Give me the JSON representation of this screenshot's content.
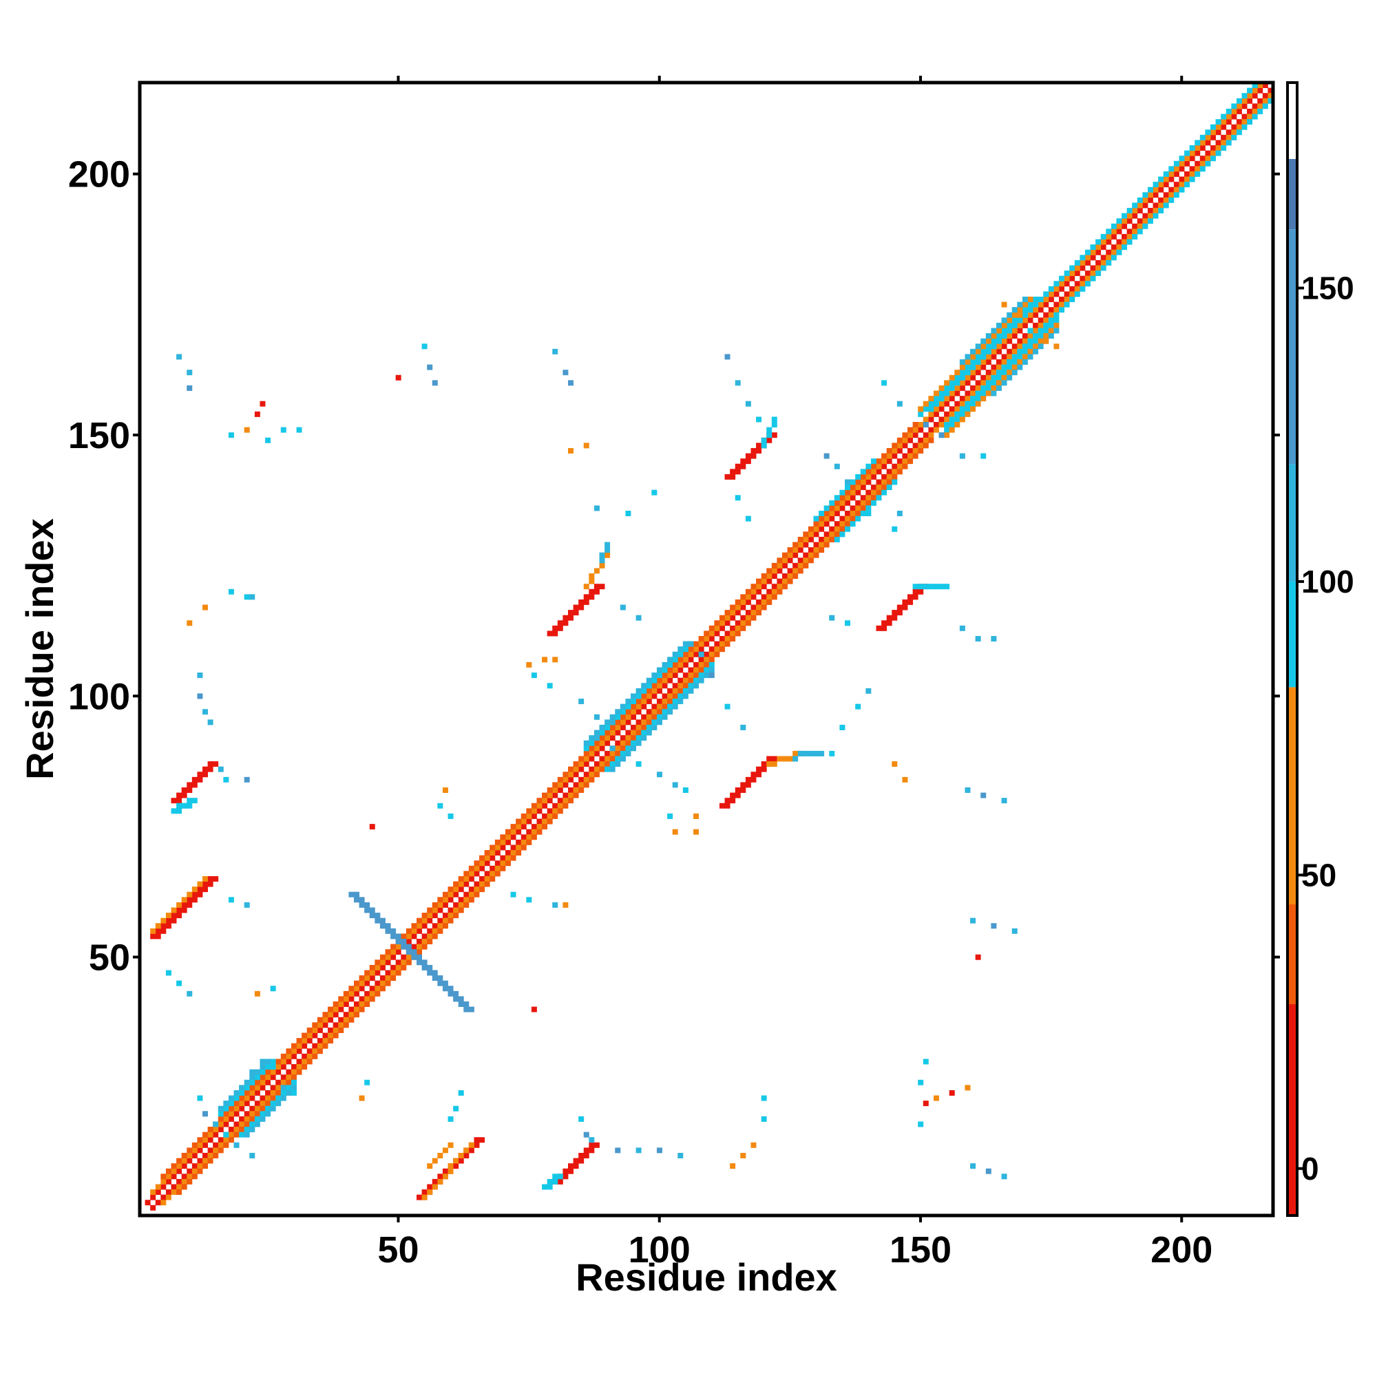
{
  "chart_data": {
    "type": "heatmap",
    "title": "",
    "xlabel": "Residue index",
    "ylabel": "Residue index",
    "xlim": [
      1,
      217
    ],
    "ylim": [
      1,
      217
    ],
    "x_ticks": [
      50,
      100,
      150,
      200
    ],
    "y_ticks": [
      50,
      100,
      150,
      200
    ],
    "symmetric": true,
    "grid": false,
    "colorbar": {
      "position": "right",
      "range": [
        -8,
        185
      ],
      "ticks": [
        0,
        50,
        100,
        150
      ],
      "bands": [
        {
          "from": -8,
          "to": 28,
          "color": "#e8170d"
        },
        {
          "from": 28,
          "to": 45,
          "color": "#f05a0b"
        },
        {
          "from": 45,
          "to": 82,
          "color": "#f38a0f"
        },
        {
          "from": 82,
          "to": 100,
          "color": "#16c8e8"
        },
        {
          "from": 100,
          "to": 120,
          "color": "#2fb4dc"
        },
        {
          "from": 120,
          "to": 160,
          "color": "#4a98cc"
        },
        {
          "from": 160,
          "to": 172,
          "color": "#4b79b0"
        },
        {
          "from": 172,
          "to": 185,
          "color": "#ffffff"
        }
      ]
    },
    "diagonal": [
      {
        "start": 1,
        "end": 217,
        "offset": 0,
        "value": 180
      },
      {
        "start": 2,
        "end": 217,
        "offset": 1,
        "value": 20
      },
      {
        "start": 3,
        "end": 217,
        "offset": 2,
        "value": 60
      },
      {
        "start": 5,
        "end": 152,
        "offset": 3,
        "value": 40
      },
      {
        "start": 152,
        "end": 217,
        "offset": 3,
        "value": 90
      },
      {
        "start": 16,
        "end": 30,
        "offset": 4,
        "value": 90
      },
      {
        "start": 16,
        "end": 30,
        "offset": 5,
        "value": 110
      },
      {
        "start": 86,
        "end": 110,
        "offset": 4,
        "value": 90
      },
      {
        "start": 86,
        "end": 110,
        "offset": 5,
        "value": 110
      },
      {
        "start": 130,
        "end": 145,
        "offset": 4,
        "value": 90
      },
      {
        "start": 150,
        "end": 176,
        "offset": 4,
        "value": 90
      },
      {
        "start": 150,
        "end": 176,
        "offset": 5,
        "value": 60
      },
      {
        "start": 158,
        "end": 176,
        "offset": 6,
        "value": 110
      }
    ],
    "contacts": [
      {
        "x1": 3,
        "y1": 54,
        "x2": 14,
        "y2": 65,
        "w": 2,
        "value": 20
      },
      {
        "x1": 3,
        "y1": 55,
        "x2": 13,
        "y2": 65,
        "w": 1,
        "value": 60
      },
      {
        "x1": 7,
        "y1": 80,
        "x2": 14,
        "y2": 87,
        "w": 2,
        "value": 20
      },
      {
        "x1": 7,
        "y1": 78,
        "x2": 10,
        "y2": 80,
        "w": 2,
        "value": 90
      },
      {
        "x1": 54,
        "y1": 4,
        "x2": 65,
        "y2": 15,
        "w": 2,
        "value": 20
      },
      {
        "x1": 55,
        "y1": 4,
        "x2": 64,
        "y2": 14,
        "w": 1,
        "value": 60
      },
      {
        "x1": 80,
        "y1": 7,
        "x2": 87,
        "y2": 14,
        "w": 2,
        "value": 20
      },
      {
        "x1": 78,
        "y1": 6,
        "x2": 80,
        "y2": 8,
        "w": 2,
        "value": 90
      },
      {
        "x1": 79,
        "y1": 112,
        "x2": 88,
        "y2": 121,
        "w": 2,
        "value": 20
      },
      {
        "x1": 86,
        "y1": 121,
        "x2": 90,
        "y2": 127,
        "w": 1,
        "value": 60
      },
      {
        "x1": 89,
        "y1": 126,
        "x2": 90,
        "y2": 129,
        "w": 1,
        "value": 100
      },
      {
        "x1": 112,
        "y1": 79,
        "x2": 121,
        "y2": 88,
        "w": 2,
        "value": 20
      },
      {
        "x1": 121,
        "y1": 87,
        "x2": 127,
        "y2": 89,
        "w": 1,
        "value": 60
      },
      {
        "x1": 127,
        "y1": 89,
        "x2": 131,
        "y2": 89,
        "w": 1,
        "value": 100
      },
      {
        "x1": 113,
        "y1": 142,
        "x2": 121,
        "y2": 150,
        "w": 2,
        "value": 20
      },
      {
        "x1": 120,
        "y1": 148,
        "x2": 122,
        "y2": 153,
        "w": 1,
        "value": 90
      },
      {
        "x1": 142,
        "y1": 113,
        "x2": 150,
        "y2": 121,
        "w": 2,
        "value": 20
      },
      {
        "x1": 149,
        "y1": 121,
        "x2": 155,
        "y2": 121,
        "w": 1,
        "value": 90
      },
      {
        "x1": 41,
        "y1": 62,
        "x2": 63,
        "y2": 40,
        "w": 2,
        "value": 130
      },
      {
        "x1": 56,
        "y1": 10,
        "x2": 60,
        "y2": 14,
        "w": 1,
        "value": 60
      }
    ],
    "points": [
      {
        "x": 8,
        "y": 165,
        "value": 110
      },
      {
        "x": 10,
        "y": 162,
        "value": 100
      },
      {
        "x": 10,
        "y": 159,
        "value": 130
      },
      {
        "x": 18,
        "y": 150,
        "value": 90
      },
      {
        "x": 21,
        "y": 151,
        "value": 60
      },
      {
        "x": 23,
        "y": 154,
        "value": 20
      },
      {
        "x": 24,
        "y": 156,
        "value": 20
      },
      {
        "x": 25,
        "y": 149,
        "value": 90
      },
      {
        "x": 28,
        "y": 151,
        "value": 90
      },
      {
        "x": 31,
        "y": 151,
        "value": 90
      },
      {
        "x": 10,
        "y": 114,
        "value": 60
      },
      {
        "x": 13,
        "y": 117,
        "value": 60
      },
      {
        "x": 18,
        "y": 120,
        "value": 90
      },
      {
        "x": 21,
        "y": 119,
        "value": 90
      },
      {
        "x": 22,
        "y": 119,
        "value": 100
      },
      {
        "x": 12,
        "y": 104,
        "value": 100
      },
      {
        "x": 12,
        "y": 100,
        "value": 120
      },
      {
        "x": 13,
        "y": 97,
        "value": 110
      },
      {
        "x": 14,
        "y": 95,
        "value": 110
      },
      {
        "x": 16,
        "y": 86,
        "value": 110
      },
      {
        "x": 17,
        "y": 84,
        "value": 90
      },
      {
        "x": 21,
        "y": 84,
        "value": 130
      },
      {
        "x": 18,
        "y": 61,
        "value": 90
      },
      {
        "x": 21,
        "y": 60,
        "value": 100
      },
      {
        "x": 6,
        "y": 47,
        "value": 90
      },
      {
        "x": 8,
        "y": 45,
        "value": 90
      },
      {
        "x": 10,
        "y": 43,
        "value": 100
      },
      {
        "x": 23,
        "y": 43,
        "value": 60
      },
      {
        "x": 26,
        "y": 44,
        "value": 90
      },
      {
        "x": 44,
        "y": 26,
        "value": 90
      },
      {
        "x": 43,
        "y": 23,
        "value": 60
      },
      {
        "x": 45,
        "y": 75,
        "value": 20
      },
      {
        "x": 50,
        "y": 161,
        "value": 20
      },
      {
        "x": 55,
        "y": 167,
        "value": 90
      },
      {
        "x": 56,
        "y": 163,
        "value": 130
      },
      {
        "x": 57,
        "y": 160,
        "value": 120
      },
      {
        "x": 59,
        "y": 82,
        "value": 60
      },
      {
        "x": 58,
        "y": 79,
        "value": 90
      },
      {
        "x": 60,
        "y": 77,
        "value": 90
      },
      {
        "x": 60,
        "y": 19,
        "value": 90
      },
      {
        "x": 62,
        "y": 24,
        "value": 90
      },
      {
        "x": 61,
        "y": 21,
        "value": 90
      },
      {
        "x": 72,
        "y": 62,
        "value": 90
      },
      {
        "x": 75,
        "y": 61,
        "value": 90
      },
      {
        "x": 80,
        "y": 60,
        "value": 100
      },
      {
        "x": 82,
        "y": 60,
        "value": 60
      },
      {
        "x": 76,
        "y": 40,
        "value": 20
      },
      {
        "x": 75,
        "y": 106,
        "value": 60
      },
      {
        "x": 78,
        "y": 107,
        "value": 60
      },
      {
        "x": 80,
        "y": 107,
        "value": 60
      },
      {
        "x": 76,
        "y": 104,
        "value": 90
      },
      {
        "x": 79,
        "y": 102,
        "value": 90
      },
      {
        "x": 80,
        "y": 166,
        "value": 110
      },
      {
        "x": 82,
        "y": 162,
        "value": 120
      },
      {
        "x": 83,
        "y": 160,
        "value": 130
      },
      {
        "x": 83,
        "y": 147,
        "value": 60
      },
      {
        "x": 86,
        "y": 148,
        "value": 60
      },
      {
        "x": 88,
        "y": 136,
        "value": 100
      },
      {
        "x": 94,
        "y": 135,
        "value": 90
      },
      {
        "x": 99,
        "y": 139,
        "value": 90
      },
      {
        "x": 93,
        "y": 117,
        "value": 100
      },
      {
        "x": 96,
        "y": 115,
        "value": 100
      },
      {
        "x": 85,
        "y": 99,
        "value": 100
      },
      {
        "x": 88,
        "y": 96,
        "value": 110
      },
      {
        "x": 91,
        "y": 95,
        "value": 110
      },
      {
        "x": 85,
        "y": 19,
        "value": 90
      },
      {
        "x": 86,
        "y": 16,
        "value": 120
      },
      {
        "x": 87,
        "y": 15,
        "value": 100
      },
      {
        "x": 92,
        "y": 13,
        "value": 120
      },
      {
        "x": 96,
        "y": 13,
        "value": 110
      },
      {
        "x": 100,
        "y": 13,
        "value": 120
      },
      {
        "x": 104,
        "y": 12,
        "value": 110
      },
      {
        "x": 114,
        "y": 10,
        "value": 60
      },
      {
        "x": 116,
        "y": 12,
        "value": 60
      },
      {
        "x": 118,
        "y": 14,
        "value": 60
      },
      {
        "x": 105,
        "y": 82,
        "value": 90
      },
      {
        "x": 102,
        "y": 77,
        "value": 90
      },
      {
        "x": 107,
        "y": 77,
        "value": 60
      },
      {
        "x": 103,
        "y": 74,
        "value": 60
      },
      {
        "x": 107,
        "y": 74,
        "value": 60
      },
      {
        "x": 113,
        "y": 98,
        "value": 90
      },
      {
        "x": 116,
        "y": 94,
        "value": 100
      },
      {
        "x": 126,
        "y": 88,
        "value": 100
      },
      {
        "x": 133,
        "y": 89,
        "value": 90
      },
      {
        "x": 113,
        "y": 165,
        "value": 120
      },
      {
        "x": 115,
        "y": 160,
        "value": 110
      },
      {
        "x": 117,
        "y": 156,
        "value": 100
      },
      {
        "x": 119,
        "y": 153,
        "value": 90
      },
      {
        "x": 115,
        "y": 138,
        "value": 90
      },
      {
        "x": 117,
        "y": 134,
        "value": 90
      },
      {
        "x": 120,
        "y": 23,
        "value": 90
      },
      {
        "x": 120,
        "y": 19,
        "value": 90
      },
      {
        "x": 135,
        "y": 94,
        "value": 90
      },
      {
        "x": 138,
        "y": 98,
        "value": 90
      },
      {
        "x": 140,
        "y": 101,
        "value": 100
      },
      {
        "x": 133,
        "y": 115,
        "value": 100
      },
      {
        "x": 136,
        "y": 114,
        "value": 90
      },
      {
        "x": 158,
        "y": 113,
        "value": 110
      },
      {
        "x": 161,
        "y": 111,
        "value": 110
      },
      {
        "x": 164,
        "y": 111,
        "value": 110
      },
      {
        "x": 145,
        "y": 87,
        "value": 60
      },
      {
        "x": 147,
        "y": 84,
        "value": 60
      },
      {
        "x": 159,
        "y": 82,
        "value": 110
      },
      {
        "x": 162,
        "y": 81,
        "value": 120
      },
      {
        "x": 166,
        "y": 80,
        "value": 110
      },
      {
        "x": 150,
        "y": 26,
        "value": 90
      },
      {
        "x": 151,
        "y": 22,
        "value": 20
      },
      {
        "x": 150,
        "y": 18,
        "value": 90
      },
      {
        "x": 153,
        "y": 23,
        "value": 60
      },
      {
        "x": 156,
        "y": 24,
        "value": 20
      },
      {
        "x": 159,
        "y": 25,
        "value": 60
      },
      {
        "x": 151,
        "y": 30,
        "value": 90
      },
      {
        "x": 160,
        "y": 57,
        "value": 110
      },
      {
        "x": 164,
        "y": 56,
        "value": 130
      },
      {
        "x": 168,
        "y": 55,
        "value": 100
      },
      {
        "x": 161,
        "y": 50,
        "value": 20
      },
      {
        "x": 160,
        "y": 10,
        "value": 110
      },
      {
        "x": 163,
        "y": 9,
        "value": 120
      },
      {
        "x": 166,
        "y": 8,
        "value": 110
      },
      {
        "x": 143,
        "y": 160,
        "value": 90
      },
      {
        "x": 146,
        "y": 156,
        "value": 110
      },
      {
        "x": 151,
        "y": 152,
        "value": 130
      },
      {
        "x": 154,
        "y": 150,
        "value": 130
      },
      {
        "x": 158,
        "y": 146,
        "value": 100
      },
      {
        "x": 162,
        "y": 146,
        "value": 90
      },
      {
        "x": 140,
        "y": 135,
        "value": 90
      },
      {
        "x": 145,
        "y": 132,
        "value": 90
      },
      {
        "x": 146,
        "y": 135,
        "value": 100
      },
      {
        "x": 136,
        "y": 141,
        "value": 110
      },
      {
        "x": 134,
        "y": 144,
        "value": 100
      },
      {
        "x": 132,
        "y": 146,
        "value": 120
      },
      {
        "x": 88,
        "y": 92,
        "value": 110
      },
      {
        "x": 91,
        "y": 90,
        "value": 100
      },
      {
        "x": 93,
        "y": 88,
        "value": 110
      },
      {
        "x": 96,
        "y": 87,
        "value": 90
      },
      {
        "x": 100,
        "y": 85,
        "value": 100
      },
      {
        "x": 103,
        "y": 83,
        "value": 110
      },
      {
        "x": 106,
        "y": 110,
        "value": 100
      },
      {
        "x": 108,
        "y": 108,
        "value": 110
      },
      {
        "x": 110,
        "y": 104,
        "value": 120
      },
      {
        "x": 169,
        "y": 173,
        "value": 60
      },
      {
        "x": 171,
        "y": 170,
        "value": 90
      },
      {
        "x": 174,
        "y": 168,
        "value": 60
      },
      {
        "x": 176,
        "y": 167,
        "value": 60
      },
      {
        "x": 166,
        "y": 175,
        "value": 60
      },
      {
        "x": 13,
        "y": 20,
        "value": 120
      },
      {
        "x": 15,
        "y": 18,
        "value": 110
      },
      {
        "x": 17,
        "y": 16,
        "value": 90
      },
      {
        "x": 19,
        "y": 14,
        "value": 110
      },
      {
        "x": 22,
        "y": 12,
        "value": 100
      },
      {
        "x": 12,
        "y": 23,
        "value": 90
      },
      {
        "x": 22,
        "y": 28,
        "value": 110
      },
      {
        "x": 24,
        "y": 30,
        "value": 100
      },
      {
        "x": 26,
        "y": 29,
        "value": 90
      },
      {
        "x": 28,
        "y": 25,
        "value": 110
      },
      {
        "x": 30,
        "y": 24,
        "value": 90
      }
    ]
  }
}
